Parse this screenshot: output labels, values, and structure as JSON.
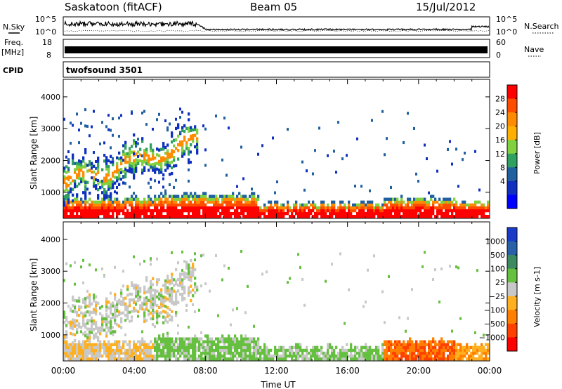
{
  "header": {
    "station": "Saskatoon (fitACF)",
    "beam": "Beam 05",
    "date": "15/Jul/2012"
  },
  "strips": {
    "nsky": {
      "label": "N.Sky",
      "ticks": [
        "10^5",
        "10^0"
      ]
    },
    "nsearch": {
      "label": "N.Search",
      "ticks": [
        "10^5",
        "10^0"
      ]
    },
    "freq": {
      "label1": "Freq.",
      "label2": "[MHz]",
      "ticks": [
        "18",
        "8"
      ]
    },
    "nave": {
      "label": "Nave",
      "ticks": [
        "60",
        "0"
      ]
    },
    "cpid": {
      "label": "CPID",
      "value": "twofsound 3501"
    }
  },
  "chart_data": [
    {
      "type": "heatmap",
      "name": "power",
      "xlabel": "Time UT",
      "ylabel": "Slant Range [km]",
      "x_ticks": [
        "00:00",
        "04:00",
        "08:00",
        "12:00",
        "16:00",
        "20:00",
        "00:00"
      ],
      "y_ticks": [
        1000,
        2000,
        3000,
        4000
      ],
      "ylim": [
        180,
        4550
      ],
      "colorbar": {
        "label": "Power [dB]",
        "ticks": [
          "28",
          "24",
          "20",
          "16",
          "12",
          "8",
          "4"
        ],
        "colors": [
          "#ff0000",
          "#ff4d00",
          "#ff8c00",
          "#ffb000",
          "#80d040",
          "#30a060",
          "#2060a0",
          "#1030c0",
          "#0000ff"
        ]
      }
    },
    {
      "type": "heatmap",
      "name": "velocity",
      "xlabel": "Time UT",
      "ylabel": "Slant Range [km]",
      "x_ticks": [
        "00:00",
        "04:00",
        "08:00",
        "12:00",
        "16:00",
        "20:00",
        "00:00"
      ],
      "y_ticks": [
        1000,
        2000,
        3000,
        4000
      ],
      "ylim": [
        180,
        4550
      ],
      "colorbar": {
        "label": "Velocity [m s-1]",
        "ticks": [
          "1000",
          "500",
          "100",
          "25",
          "−25",
          "−100",
          "−500",
          "−1000"
        ],
        "colors": [
          "#1a3cc8",
          "#2a60a8",
          "#3c8a60",
          "#66c040",
          "#c8c8c8",
          "#ffb020",
          "#ff8000",
          "#ff4000",
          "#ff0000"
        ]
      }
    }
  ]
}
